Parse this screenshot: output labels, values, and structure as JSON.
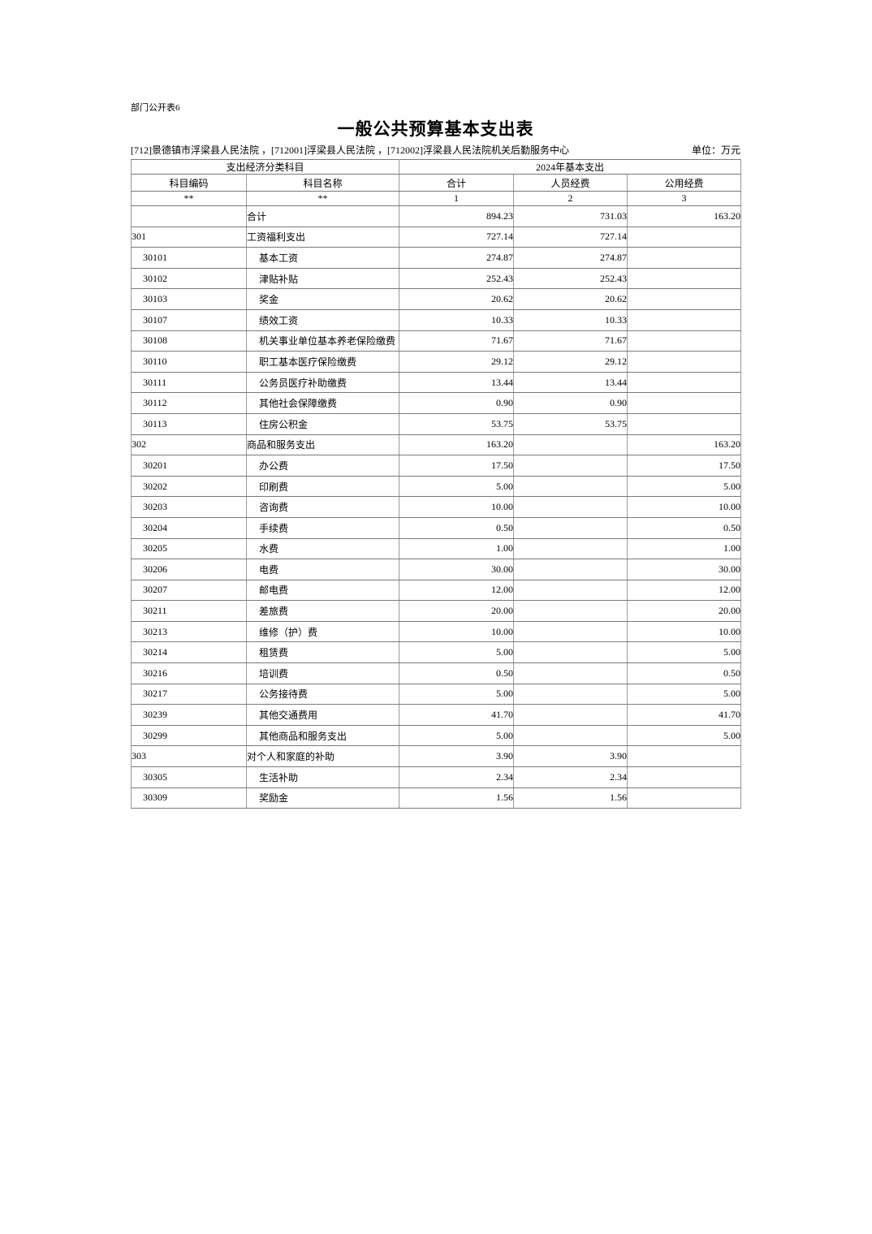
{
  "page": {
    "doc_label": "部门公开表6",
    "title": "一般公共预算基本支出表",
    "org_line": "[712]景德镇市浮梁县人民法院 ，[712001]浮梁县人民法院 ，[712002]浮梁县人民法院机关后勤服务中心",
    "unit_label": "单位：万元"
  },
  "table": {
    "header": {
      "group_left": "支出经济分类科目",
      "group_right": "2024年基本支出",
      "columns": [
        "科目编码",
        "科目名称",
        "合计",
        "人员经费",
        "公用经费"
      ],
      "sub_row": [
        "**",
        "**",
        "1",
        "2",
        "3"
      ]
    },
    "rows": [
      {
        "code": "",
        "name": "合计",
        "total": "894.23",
        "personnel": "731.03",
        "public": "163.20",
        "indent": 0
      },
      {
        "code": "301",
        "name": "工资福利支出",
        "total": "727.14",
        "personnel": "727.14",
        "public": "",
        "indent": 0
      },
      {
        "code": "30101",
        "name": "基本工资",
        "total": "274.87",
        "personnel": "274.87",
        "public": "",
        "indent": 1
      },
      {
        "code": "30102",
        "name": "津贴补贴",
        "total": "252.43",
        "personnel": "252.43",
        "public": "",
        "indent": 1
      },
      {
        "code": "30103",
        "name": "奖金",
        "total": "20.62",
        "personnel": "20.62",
        "public": "",
        "indent": 1
      },
      {
        "code": "30107",
        "name": "绩效工资",
        "total": "10.33",
        "personnel": "10.33",
        "public": "",
        "indent": 1
      },
      {
        "code": "30108",
        "name": "机关事业单位基本养老保险缴费",
        "total": "71.67",
        "personnel": "71.67",
        "public": "",
        "indent": 1
      },
      {
        "code": "30110",
        "name": "职工基本医疗保险缴费",
        "total": "29.12",
        "personnel": "29.12",
        "public": "",
        "indent": 1
      },
      {
        "code": "30111",
        "name": "公务员医疗补助缴费",
        "total": "13.44",
        "personnel": "13.44",
        "public": "",
        "indent": 1
      },
      {
        "code": "30112",
        "name": "其他社会保障缴费",
        "total": "0.90",
        "personnel": "0.90",
        "public": "",
        "indent": 1
      },
      {
        "code": "30113",
        "name": "住房公积金",
        "total": "53.75",
        "personnel": "53.75",
        "public": "",
        "indent": 1
      },
      {
        "code": "302",
        "name": "商品和服务支出",
        "total": "163.20",
        "personnel": "",
        "public": "163.20",
        "indent": 0
      },
      {
        "code": "30201",
        "name": "办公费",
        "total": "17.50",
        "personnel": "",
        "public": "17.50",
        "indent": 1
      },
      {
        "code": "30202",
        "name": "印刷费",
        "total": "5.00",
        "personnel": "",
        "public": "5.00",
        "indent": 1
      },
      {
        "code": "30203",
        "name": "咨询费",
        "total": "10.00",
        "personnel": "",
        "public": "10.00",
        "indent": 1
      },
      {
        "code": "30204",
        "name": "手续费",
        "total": "0.50",
        "personnel": "",
        "public": "0.50",
        "indent": 1
      },
      {
        "code": "30205",
        "name": "水费",
        "total": "1.00",
        "personnel": "",
        "public": "1.00",
        "indent": 1
      },
      {
        "code": "30206",
        "name": "电费",
        "total": "30.00",
        "personnel": "",
        "public": "30.00",
        "indent": 1
      },
      {
        "code": "30207",
        "name": "邮电费",
        "total": "12.00",
        "personnel": "",
        "public": "12.00",
        "indent": 1
      },
      {
        "code": "30211",
        "name": "差旅费",
        "total": "20.00",
        "personnel": "",
        "public": "20.00",
        "indent": 1
      },
      {
        "code": "30213",
        "name": "维修（护）费",
        "total": "10.00",
        "personnel": "",
        "public": "10.00",
        "indent": 1
      },
      {
        "code": "30214",
        "name": "租赁费",
        "total": "5.00",
        "personnel": "",
        "public": "5.00",
        "indent": 1
      },
      {
        "code": "30216",
        "name": "培训费",
        "total": "0.50",
        "personnel": "",
        "public": "0.50",
        "indent": 1
      },
      {
        "code": "30217",
        "name": "公务接待费",
        "total": "5.00",
        "personnel": "",
        "public": "5.00",
        "indent": 1
      },
      {
        "code": "30239",
        "name": "其他交通费用",
        "total": "41.70",
        "personnel": "",
        "public": "41.70",
        "indent": 1
      },
      {
        "code": "30299",
        "name": "其他商品和服务支出",
        "total": "5.00",
        "personnel": "",
        "public": "5.00",
        "indent": 1
      },
      {
        "code": "303",
        "name": "对个人和家庭的补助",
        "total": "3.90",
        "personnel": "3.90",
        "public": "",
        "indent": 0
      },
      {
        "code": "30305",
        "name": "生活补助",
        "total": "2.34",
        "personnel": "2.34",
        "public": "",
        "indent": 1
      },
      {
        "code": "30309",
        "name": "奖励金",
        "total": "1.56",
        "personnel": "1.56",
        "public": "",
        "indent": 1
      }
    ]
  }
}
